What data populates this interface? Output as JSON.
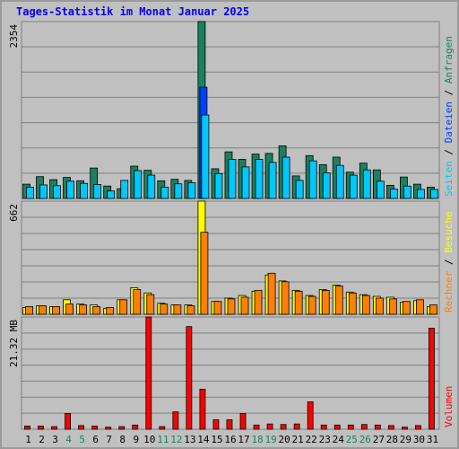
{
  "chart_data": [
    {
      "type": "bar",
      "title": "Tages-Statistik im Monat Januar 2025",
      "y_max_label": "2354",
      "ylim": [
        0,
        2354
      ],
      "grid": true,
      "categories": [
        "1",
        "2",
        "3",
        "4",
        "5",
        "6",
        "7",
        "8",
        "9",
        "10",
        "11",
        "12",
        "13",
        "14",
        "15",
        "16",
        "17",
        "18",
        "19",
        "20",
        "21",
        "22",
        "23",
        "24",
        "25",
        "26",
        "27",
        "28",
        "29",
        "30",
        "31"
      ],
      "weekend_categories": [
        "4",
        "5",
        "11",
        "12",
        "18",
        "19",
        "25",
        "26"
      ],
      "series": [
        {
          "name": "Anfragen",
          "color": "#1a8060",
          "values": [
            190,
            290,
            250,
            280,
            235,
            405,
            165,
            130,
            430,
            375,
            235,
            255,
            240,
            2354,
            395,
            620,
            520,
            590,
            600,
            700,
            300,
            570,
            450,
            550,
            350,
            470,
            380,
            175,
            285,
            190,
            150
          ]
        },
        {
          "name": "Dateien",
          "color": "#0040ff",
          "values": [
            0,
            0,
            0,
            0,
            0,
            0,
            0,
            0,
            0,
            0,
            0,
            0,
            0,
            1480,
            0,
            0,
            0,
            0,
            0,
            0,
            0,
            0,
            0,
            0,
            0,
            0,
            0,
            0,
            0,
            0,
            0
          ]
        },
        {
          "name": "Seiten",
          "color": "#00c8ff",
          "values": [
            150,
            180,
            170,
            230,
            200,
            185,
            100,
            240,
            370,
            310,
            150,
            195,
            210,
            1110,
            330,
            520,
            420,
            520,
            480,
            550,
            240,
            500,
            340,
            440,
            310,
            380,
            230,
            125,
            165,
            120,
            120
          ]
        }
      ]
    },
    {
      "type": "bar",
      "y_max_label": "662",
      "ylim": [
        0,
        662
      ],
      "grid": true,
      "categories": [
        "1",
        "2",
        "3",
        "4",
        "5",
        "6",
        "7",
        "8",
        "9",
        "10",
        "11",
        "12",
        "13",
        "14",
        "15",
        "16",
        "17",
        "18",
        "19",
        "20",
        "21",
        "22",
        "23",
        "24",
        "25",
        "26",
        "27",
        "28",
        "29",
        "30",
        "31"
      ],
      "series": [
        {
          "name": "Besuche",
          "color": "#ffff00",
          "values": [
            40,
            50,
            45,
            85,
            60,
            55,
            35,
            85,
            155,
            125,
            65,
            55,
            55,
            662,
            75,
            95,
            110,
            135,
            230,
            195,
            140,
            110,
            145,
            170,
            130,
            115,
            105,
            100,
            70,
            80,
            45
          ]
        },
        {
          "name": "Rechner",
          "color": "#ff8000",
          "values": [
            45,
            50,
            45,
            60,
            55,
            45,
            40,
            85,
            145,
            115,
            60,
            55,
            50,
            480,
            75,
            90,
            100,
            140,
            240,
            190,
            135,
            105,
            140,
            165,
            125,
            110,
            95,
            90,
            75,
            85,
            55
          ]
        }
      ]
    },
    {
      "type": "bar",
      "y_max_label": "21.32 MB",
      "ylim": [
        0,
        21.32
      ],
      "ylabel": "MB",
      "grid": true,
      "categories": [
        "1",
        "2",
        "3",
        "4",
        "5",
        "6",
        "7",
        "8",
        "9",
        "10",
        "11",
        "12",
        "13",
        "14",
        "15",
        "16",
        "17",
        "18",
        "19",
        "20",
        "21",
        "22",
        "23",
        "24",
        "25",
        "26",
        "27",
        "28",
        "29",
        "30",
        "31"
      ],
      "series": [
        {
          "name": "Volumen",
          "color": "#ff0000",
          "values": [
            0.6,
            0.6,
            0.5,
            3.0,
            0.7,
            0.6,
            0.4,
            0.5,
            0.8,
            21.32,
            0.5,
            3.3,
            19.5,
            7.6,
            1.8,
            1.8,
            3.0,
            0.8,
            1.0,
            0.9,
            1.0,
            5.2,
            0.8,
            0.8,
            0.8,
            0.9,
            0.8,
            0.7,
            0.4,
            0.7,
            19.2
          ]
        }
      ]
    }
  ]
}
